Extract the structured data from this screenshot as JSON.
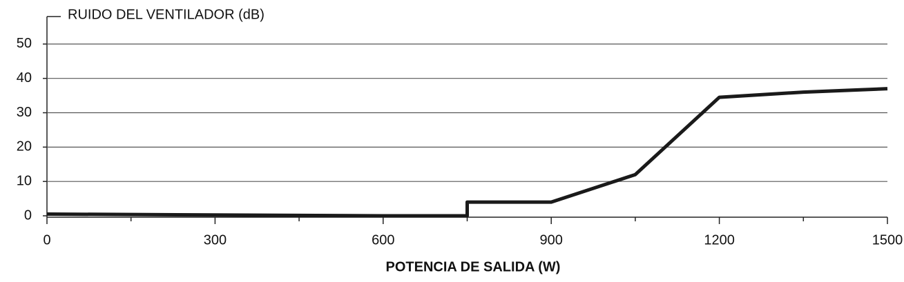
{
  "chart_data": {
    "type": "line",
    "title": "RUIDO DEL VENTILADOR (dB)",
    "x_label": "POTENCIA DE SALIDA (W)",
    "x": [
      0,
      600,
      750,
      750,
      900,
      1050,
      1200,
      1350,
      1500
    ],
    "series": [
      {
        "color": "#1a1a1a",
        "values": [
          0.5,
          0,
          0,
          4,
          4,
          12,
          34.5,
          36,
          37
        ]
      }
    ],
    "xlim": [
      0,
      1500
    ],
    "xticks": [
      0,
      300,
      600,
      900,
      1200,
      1500
    ],
    "xminorticks": [
      150,
      450,
      750,
      1050,
      1350
    ],
    "ylim": [
      0,
      58
    ],
    "yticks": [
      0,
      10,
      20,
      30,
      40,
      50
    ],
    "grid": true
  }
}
